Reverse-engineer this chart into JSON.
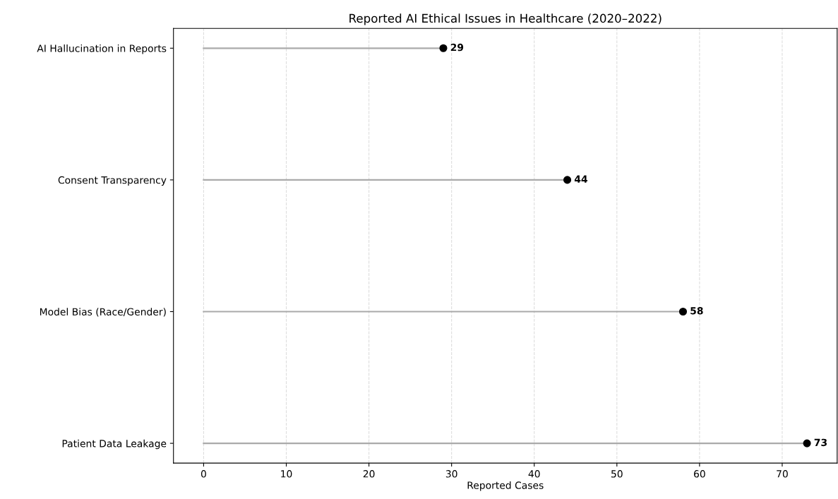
{
  "chart_data": {
    "type": "lollipop",
    "orientation": "horizontal",
    "title": "Reported AI Ethical Issues in Healthcare (2020–2022)",
    "xlabel": "Reported Cases",
    "categories": [
      "AI Hallucination in Reports",
      "Consent Transparency",
      "Model Bias (Race/Gender)",
      "Patient Data Leakage"
    ],
    "series": [
      {
        "color": "#000000",
        "values": [
          29,
          44,
          58,
          73
        ]
      }
    ],
    "xlim": [
      -3.65,
      76.65
    ],
    "xticks": [
      0,
      10,
      20,
      30,
      40,
      50,
      60,
      70
    ],
    "grid": "x",
    "data_labels": true,
    "marker": "circle"
  }
}
